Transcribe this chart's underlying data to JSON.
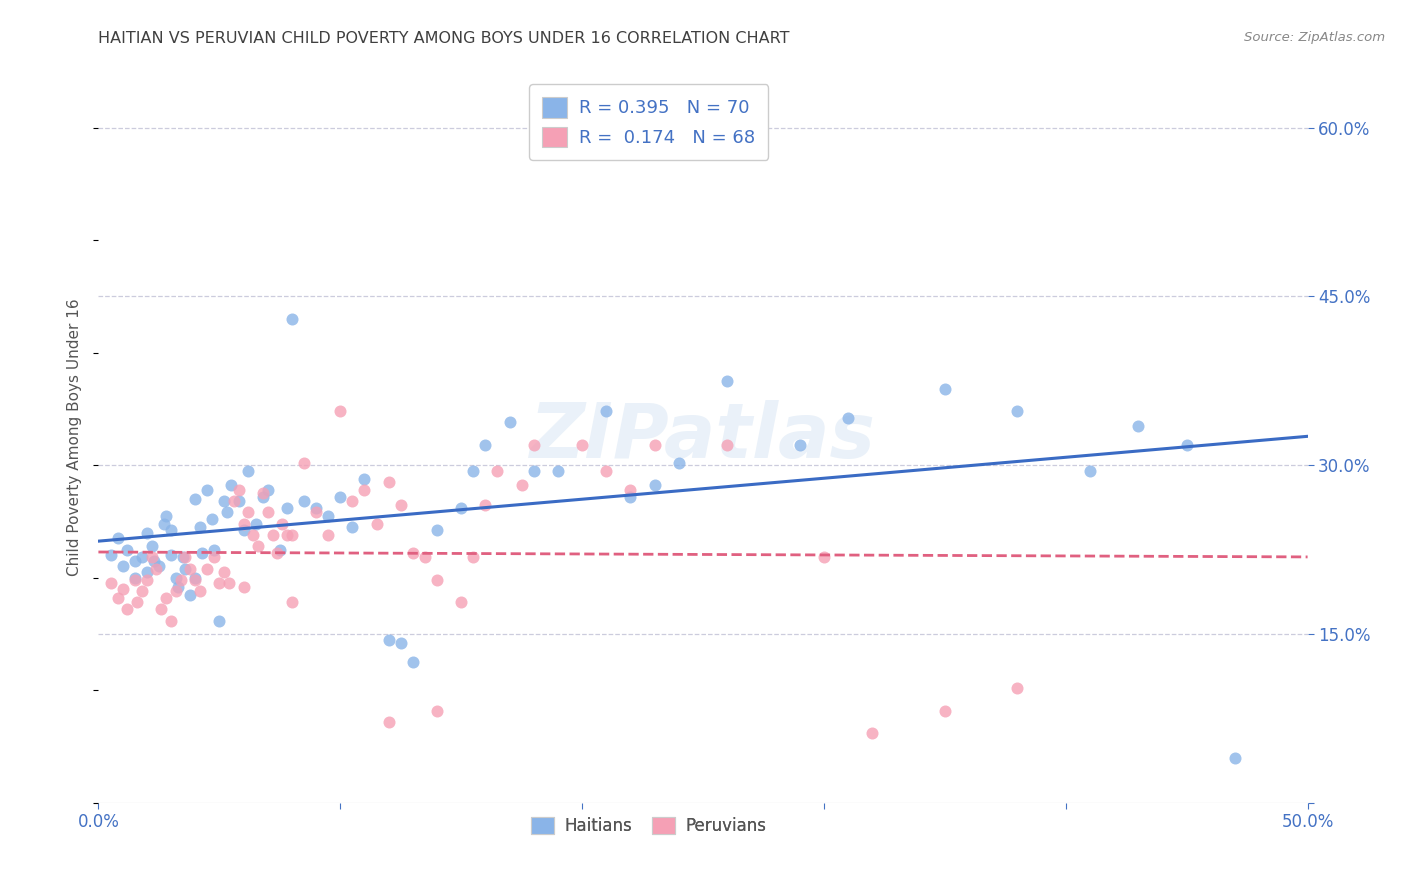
{
  "title": "HAITIAN VS PERUVIAN CHILD POVERTY AMONG BOYS UNDER 16 CORRELATION CHART",
  "source": "Source: ZipAtlas.com",
  "ylabel": "Child Poverty Among Boys Under 16",
  "xlim": [
    0.0,
    0.5
  ],
  "ylim": [
    0.0,
    0.65
  ],
  "yticks_right": [
    0.0,
    0.15,
    0.3,
    0.45,
    0.6
  ],
  "ytick_right_labels": [
    "",
    "15.0%",
    "30.0%",
    "45.0%",
    "60.0%"
  ],
  "haitian_color": "#8ab4e8",
  "peruvian_color": "#f5a0b5",
  "haitian_line_color": "#3a6bc4",
  "peruvian_line_color": "#e06080",
  "background_color": "#ffffff",
  "grid_color": "#ccccdd",
  "title_color": "#404040",
  "axis_label_color": "#555555",
  "tick_color": "#4472c4",
  "watermark": "ZIPatlas",
  "haitian_x": [
    0.005,
    0.008,
    0.01,
    0.012,
    0.015,
    0.015,
    0.018,
    0.02,
    0.02,
    0.022,
    0.023,
    0.025,
    0.027,
    0.028,
    0.03,
    0.03,
    0.032,
    0.033,
    0.035,
    0.036,
    0.038,
    0.04,
    0.04,
    0.042,
    0.043,
    0.045,
    0.047,
    0.048,
    0.05,
    0.052,
    0.053,
    0.055,
    0.058,
    0.06,
    0.062,
    0.065,
    0.068,
    0.07,
    0.075,
    0.078,
    0.08,
    0.085,
    0.09,
    0.095,
    0.1,
    0.105,
    0.11,
    0.12,
    0.125,
    0.13,
    0.14,
    0.15,
    0.155,
    0.16,
    0.17,
    0.18,
    0.19,
    0.21,
    0.22,
    0.23,
    0.24,
    0.26,
    0.29,
    0.31,
    0.35,
    0.38,
    0.41,
    0.43,
    0.45,
    0.47
  ],
  "haitian_y": [
    0.22,
    0.235,
    0.21,
    0.225,
    0.215,
    0.2,
    0.218,
    0.24,
    0.205,
    0.228,
    0.215,
    0.21,
    0.248,
    0.255,
    0.242,
    0.22,
    0.2,
    0.192,
    0.218,
    0.208,
    0.185,
    0.2,
    0.27,
    0.245,
    0.222,
    0.278,
    0.252,
    0.225,
    0.162,
    0.268,
    0.258,
    0.282,
    0.268,
    0.242,
    0.295,
    0.248,
    0.272,
    0.278,
    0.225,
    0.262,
    0.43,
    0.268,
    0.262,
    0.255,
    0.272,
    0.245,
    0.288,
    0.145,
    0.142,
    0.125,
    0.242,
    0.262,
    0.295,
    0.318,
    0.338,
    0.295,
    0.295,
    0.348,
    0.272,
    0.282,
    0.302,
    0.375,
    0.318,
    0.342,
    0.368,
    0.348,
    0.295,
    0.335,
    0.318,
    0.04
  ],
  "peruvian_x": [
    0.005,
    0.008,
    0.01,
    0.012,
    0.015,
    0.016,
    0.018,
    0.02,
    0.022,
    0.024,
    0.026,
    0.028,
    0.03,
    0.032,
    0.034,
    0.036,
    0.038,
    0.04,
    0.042,
    0.045,
    0.048,
    0.05,
    0.052,
    0.054,
    0.056,
    0.058,
    0.06,
    0.062,
    0.064,
    0.066,
    0.068,
    0.07,
    0.072,
    0.074,
    0.076,
    0.078,
    0.08,
    0.085,
    0.09,
    0.095,
    0.1,
    0.105,
    0.11,
    0.115,
    0.12,
    0.125,
    0.13,
    0.135,
    0.14,
    0.15,
    0.155,
    0.16,
    0.165,
    0.175,
    0.18,
    0.2,
    0.21,
    0.22,
    0.23,
    0.26,
    0.3,
    0.32,
    0.35,
    0.38,
    0.12,
    0.14,
    0.06,
    0.08
  ],
  "peruvian_y": [
    0.195,
    0.182,
    0.19,
    0.172,
    0.198,
    0.178,
    0.188,
    0.198,
    0.218,
    0.208,
    0.172,
    0.182,
    0.162,
    0.188,
    0.198,
    0.218,
    0.208,
    0.198,
    0.188,
    0.208,
    0.218,
    0.195,
    0.205,
    0.195,
    0.268,
    0.278,
    0.248,
    0.258,
    0.238,
    0.228,
    0.275,
    0.258,
    0.238,
    0.222,
    0.248,
    0.238,
    0.238,
    0.302,
    0.258,
    0.238,
    0.348,
    0.268,
    0.278,
    0.248,
    0.285,
    0.265,
    0.222,
    0.218,
    0.198,
    0.178,
    0.218,
    0.265,
    0.295,
    0.282,
    0.318,
    0.318,
    0.295,
    0.278,
    0.318,
    0.318,
    0.218,
    0.062,
    0.082,
    0.102,
    0.072,
    0.082,
    0.192,
    0.178
  ]
}
